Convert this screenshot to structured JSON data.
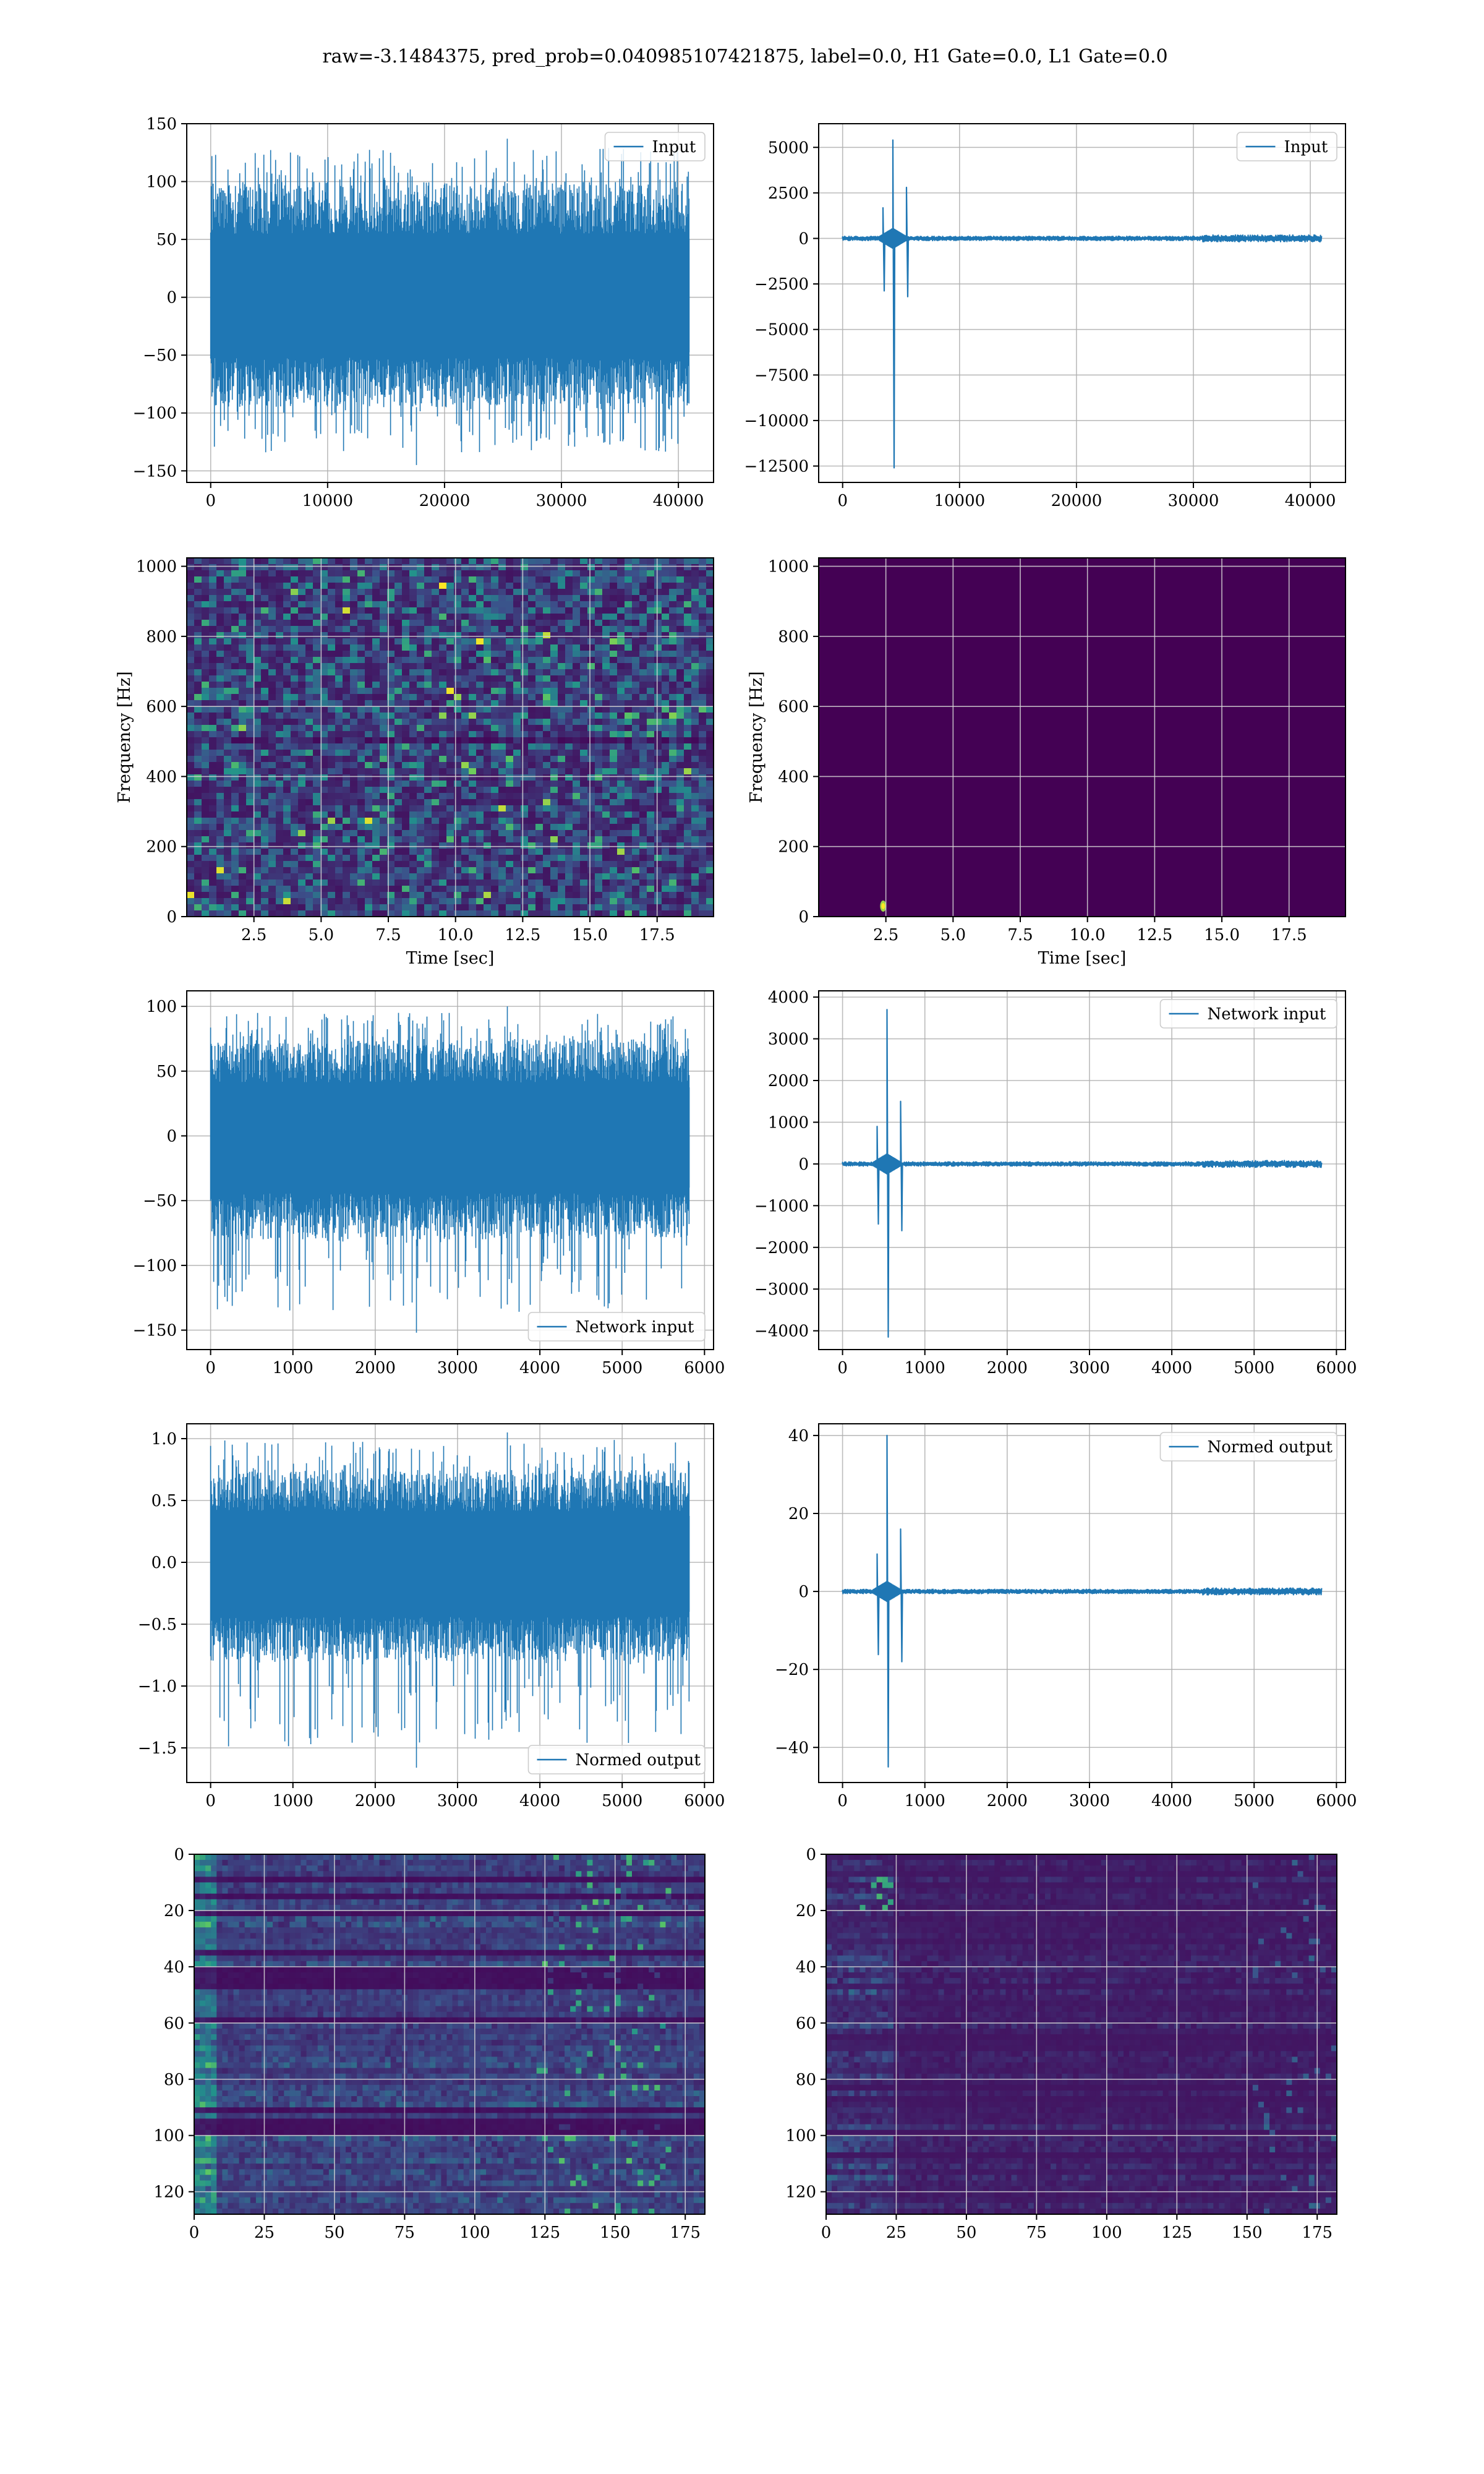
{
  "figure": {
    "suptitle": "raw=-3.1484375, pred_prob=0.040985107421875, label=0.0, H1 Gate=0.0, L1 Gate=0.0",
    "line_color": "#1f77b4"
  },
  "chart_data": [
    {
      "id": "ts_h1_input",
      "type": "line",
      "series": [
        {
          "name": "Input"
        }
      ],
      "legend": "top-right",
      "xlim": [
        -2048,
        43008
      ],
      "ylim": [
        -160,
        150
      ],
      "xticks": [
        0,
        10000,
        20000,
        30000,
        40000
      ],
      "xtick_labels": [
        "0",
        "10000",
        "20000",
        "30000",
        "40000"
      ],
      "yticks": [
        -150,
        -100,
        -50,
        0,
        50,
        100,
        150
      ],
      "ytick_labels": [
        "−150",
        "−100",
        "−50",
        "0",
        "50",
        "100",
        "150"
      ],
      "grid": true,
      "signal": {
        "n": 40960,
        "x_start": 0,
        "x_end": 40960,
        "typical_min": -95,
        "typical_max": 100,
        "extreme_min": -145,
        "extreme_max": 137
      }
    },
    {
      "id": "ts_l1_input",
      "type": "line",
      "series": [
        {
          "name": "Input"
        }
      ],
      "legend": "top-right",
      "xlim": [
        -2048,
        43008
      ],
      "ylim": [
        -13400,
        6300
      ],
      "xticks": [
        0,
        10000,
        20000,
        30000,
        40000
      ],
      "xtick_labels": [
        "0",
        "10000",
        "20000",
        "30000",
        "40000"
      ],
      "yticks": [
        -12500,
        -10000,
        -7500,
        -5000,
        -2500,
        0,
        2500,
        5000
      ],
      "ytick_labels": [
        "−12500",
        "−10000",
        "−7500",
        "−5000",
        "−2500",
        "0",
        "2500",
        "5000"
      ],
      "grid": true,
      "glitch": {
        "x_center": 4300,
        "max": 5400,
        "min": -12600,
        "second_max": 2800,
        "second_min": -3200
      }
    },
    {
      "id": "spec_h1",
      "type": "heatmap",
      "xlabel": "Time [sec]",
      "ylabel": "Frequency [Hz]",
      "xlim": [
        0.0,
        19.6
      ],
      "ylim": [
        0,
        1024
      ],
      "xticks": [
        2.5,
        5.0,
        7.5,
        10.0,
        12.5,
        15.0,
        17.5
      ],
      "xtick_labels": [
        "2.5",
        "5.0",
        "7.5",
        "10.0",
        "12.5",
        "15.0",
        "17.5"
      ],
      "yticks": [
        0,
        200,
        400,
        600,
        800,
        1000
      ],
      "ytick_labels": [
        "0",
        "200",
        "400",
        "600",
        "800",
        "1000"
      ],
      "colormap": "viridis",
      "grid": true
    },
    {
      "id": "spec_l1",
      "type": "heatmap",
      "xlabel": "Time [sec]",
      "ylabel": "Frequency [Hz]",
      "xlim": [
        0.0,
        19.6
      ],
      "ylim": [
        0,
        1024
      ],
      "xticks": [
        2.5,
        5.0,
        7.5,
        10.0,
        12.5,
        15.0,
        17.5
      ],
      "xtick_labels": [
        "2.5",
        "5.0",
        "7.5",
        "10.0",
        "12.5",
        "15.0",
        "17.5"
      ],
      "yticks": [
        0,
        200,
        400,
        600,
        800,
        1000
      ],
      "ytick_labels": [
        "0",
        "200",
        "400",
        "600",
        "800",
        "1000"
      ],
      "colormap": "viridis",
      "grid": true,
      "hotspot": {
        "time": 2.4,
        "freq": 30
      }
    },
    {
      "id": "net_h1",
      "type": "line",
      "series": [
        {
          "name": "Network input"
        }
      ],
      "legend": "bottom-right",
      "xlim": [
        -290,
        6110
      ],
      "ylim": [
        -165,
        112
      ],
      "xticks": [
        0,
        1000,
        2000,
        3000,
        4000,
        5000,
        6000
      ],
      "xtick_labels": [
        "0",
        "1000",
        "2000",
        "3000",
        "4000",
        "5000",
        "6000"
      ],
      "yticks": [
        -150,
        -100,
        -50,
        0,
        50,
        100
      ],
      "ytick_labels": [
        "−150",
        "−100",
        "−50",
        "0",
        "50",
        "100"
      ],
      "grid": true,
      "signal": {
        "n": 5820,
        "x_start": 0,
        "x_end": 5820,
        "typical_min": -80,
        "typical_max": 75,
        "extreme_min": -152,
        "extreme_max": 100
      }
    },
    {
      "id": "net_l1",
      "type": "line",
      "series": [
        {
          "name": "Network input"
        }
      ],
      "legend": "top-right",
      "xlim": [
        -290,
        6110
      ],
      "ylim": [
        -4450,
        4150
      ],
      "xticks": [
        0,
        1000,
        2000,
        3000,
        4000,
        5000,
        6000
      ],
      "xtick_labels": [
        "0",
        "1000",
        "2000",
        "3000",
        "4000",
        "5000",
        "6000"
      ],
      "yticks": [
        -4000,
        -3000,
        -2000,
        -1000,
        0,
        1000,
        2000,
        3000,
        4000
      ],
      "ytick_labels": [
        "−4000",
        "−3000",
        "−2000",
        "−1000",
        "0",
        "1000",
        "2000",
        "3000",
        "4000"
      ],
      "grid": true,
      "glitch": {
        "x_center": 540,
        "max": 3700,
        "min": -4150,
        "second_max": 1500,
        "second_min": -1600
      }
    },
    {
      "id": "norm_h1",
      "type": "line",
      "series": [
        {
          "name": "Normed output"
        }
      ],
      "legend": "bottom-right",
      "xlim": [
        -290,
        6110
      ],
      "ylim": [
        -1.78,
        1.12
      ],
      "xticks": [
        0,
        1000,
        2000,
        3000,
        4000,
        5000,
        6000
      ],
      "xtick_labels": [
        "0",
        "1000",
        "2000",
        "3000",
        "4000",
        "5000",
        "6000"
      ],
      "yticks": [
        -1.5,
        -1.0,
        -0.5,
        0.0,
        0.5,
        1.0
      ],
      "ytick_labels": [
        "−1.5",
        "−1.0",
        "−0.5",
        "0.0",
        "0.5",
        "1.0"
      ],
      "grid": true,
      "signal": {
        "n": 5820,
        "x_start": 0,
        "x_end": 5820,
        "typical_min": -0.8,
        "typical_max": 0.75,
        "extreme_min": -1.66,
        "extreme_max": 1.05
      }
    },
    {
      "id": "norm_l1",
      "type": "line",
      "series": [
        {
          "name": "Normed output"
        }
      ],
      "legend": "top-right",
      "xlim": [
        -290,
        6110
      ],
      "ylim": [
        -49,
        43
      ],
      "xticks": [
        0,
        1000,
        2000,
        3000,
        4000,
        5000,
        6000
      ],
      "xtick_labels": [
        "0",
        "1000",
        "2000",
        "3000",
        "4000",
        "5000",
        "6000"
      ],
      "yticks": [
        -40,
        -20,
        0,
        20,
        40
      ],
      "ytick_labels": [
        "−40",
        "−20",
        "0",
        "20",
        "40"
      ],
      "grid": true,
      "glitch": {
        "x_center": 540,
        "max": 40,
        "min": -45,
        "second_max": 16,
        "second_min": -18
      }
    },
    {
      "id": "feat_h1",
      "type": "heatmap",
      "xlim": [
        0,
        182
      ],
      "ylim": [
        128,
        0
      ],
      "xticks": [
        0,
        25,
        50,
        75,
        100,
        125,
        150,
        175
      ],
      "xtick_labels": [
        "0",
        "25",
        "50",
        "75",
        "100",
        "125",
        "150",
        "175"
      ],
      "yticks": [
        0,
        20,
        40,
        60,
        80,
        100,
        120
      ],
      "ytick_labels": [
        "0",
        "20",
        "40",
        "60",
        "80",
        "100",
        "120"
      ],
      "colormap": "viridis",
      "grid": true
    },
    {
      "id": "feat_l1",
      "type": "heatmap",
      "xlim": [
        0,
        182
      ],
      "ylim": [
        128,
        0
      ],
      "xticks": [
        0,
        25,
        50,
        75,
        100,
        125,
        150,
        175
      ],
      "xtick_labels": [
        "0",
        "25",
        "50",
        "75",
        "100",
        "125",
        "150",
        "175"
      ],
      "yticks": [
        0,
        20,
        40,
        60,
        80,
        100,
        120
      ],
      "ytick_labels": [
        "0",
        "20",
        "40",
        "60",
        "80",
        "100",
        "120"
      ],
      "colormap": "viridis",
      "grid": true
    }
  ]
}
